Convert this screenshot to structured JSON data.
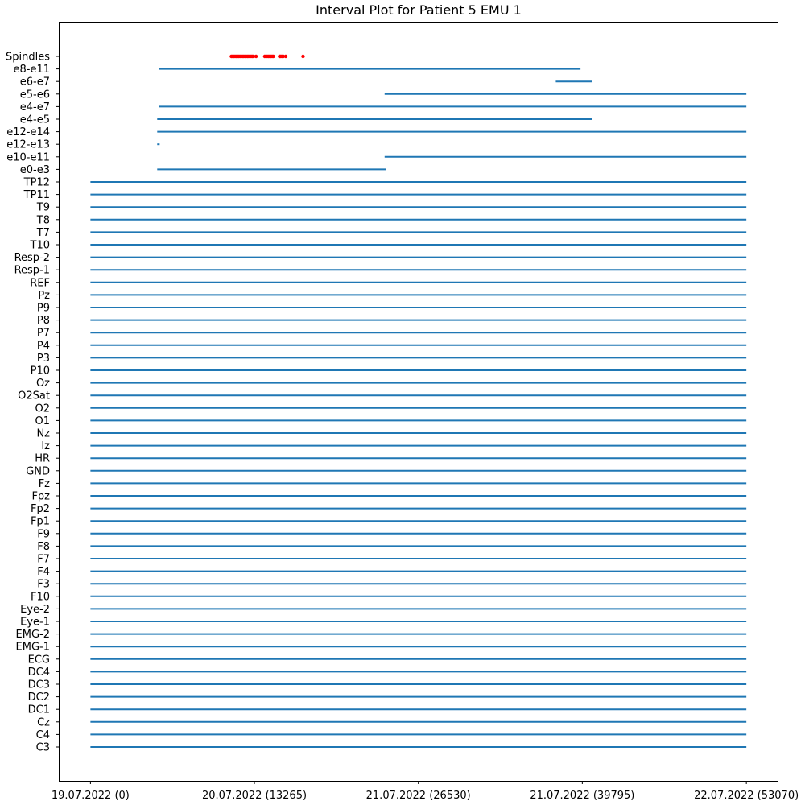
{
  "chart_data": {
    "type": "interval",
    "title": "Interval Plot for Patient 5 EMU 1",
    "xlabel": "",
    "ylabel": "",
    "xlim": [
      -2500,
      55600
    ],
    "grid": false,
    "legend": "none",
    "colors": {
      "interval": "#1f77b4",
      "spindle": "#ff0000"
    },
    "x_ticks": [
      {
        "value": 0,
        "label": "19.07.2022 (0)"
      },
      {
        "value": 13265,
        "label": "20.07.2022 (13265)"
      },
      {
        "value": 26530,
        "label": "21.07.2022 (26530)"
      },
      {
        "value": 39795,
        "label": "21.07.2022 (39795)"
      },
      {
        "value": 53070,
        "label": "22.07.2022 (53070)"
      }
    ],
    "rows": [
      {
        "label": "Spindles",
        "kind": "points",
        "points": [
          11400,
          11500,
          11600,
          11700,
          11800,
          11900,
          12000,
          12100,
          12200,
          12300,
          12400,
          12500,
          12600,
          12700,
          12800,
          12900,
          13000,
          13100,
          13200,
          13400,
          14100,
          14200,
          14300,
          14400,
          14500,
          14600,
          14700,
          14800,
          15300,
          15400,
          15500,
          15600,
          15800,
          17200
        ]
      },
      {
        "label": "e8-e11",
        "kind": "interval",
        "intervals": [
          [
            5550,
            39650
          ]
        ]
      },
      {
        "label": "e6-e7",
        "kind": "interval",
        "intervals": [
          [
            37650,
            40600
          ]
        ]
      },
      {
        "label": "e5-e6",
        "kind": "interval",
        "intervals": [
          [
            23800,
            53070
          ]
        ]
      },
      {
        "label": "e4-e7",
        "kind": "interval",
        "intervals": [
          [
            5550,
            53070
          ]
        ]
      },
      {
        "label": "e4-e5",
        "kind": "interval",
        "intervals": [
          [
            5400,
            40600
          ]
        ]
      },
      {
        "label": "e12-e14",
        "kind": "interval",
        "intervals": [
          [
            5400,
            53070
          ]
        ]
      },
      {
        "label": "e12-e13",
        "kind": "interval",
        "intervals": [
          [
            5400,
            5600
          ]
        ]
      },
      {
        "label": "e10-e11",
        "kind": "interval",
        "intervals": [
          [
            23800,
            53070
          ]
        ]
      },
      {
        "label": "e0-e3",
        "kind": "interval",
        "intervals": [
          [
            5400,
            23900
          ]
        ]
      },
      {
        "label": "TP12",
        "kind": "interval",
        "intervals": [
          [
            0,
            53070
          ]
        ]
      },
      {
        "label": "TP11",
        "kind": "interval",
        "intervals": [
          [
            0,
            53070
          ]
        ]
      },
      {
        "label": "T9",
        "kind": "interval",
        "intervals": [
          [
            0,
            53070
          ]
        ]
      },
      {
        "label": "T8",
        "kind": "interval",
        "intervals": [
          [
            0,
            53070
          ]
        ]
      },
      {
        "label": "T7",
        "kind": "interval",
        "intervals": [
          [
            0,
            53070
          ]
        ]
      },
      {
        "label": "T10",
        "kind": "interval",
        "intervals": [
          [
            0,
            53070
          ]
        ]
      },
      {
        "label": "Resp-2",
        "kind": "interval",
        "intervals": [
          [
            0,
            53070
          ]
        ]
      },
      {
        "label": "Resp-1",
        "kind": "interval",
        "intervals": [
          [
            0,
            53070
          ]
        ]
      },
      {
        "label": "REF",
        "kind": "interval",
        "intervals": [
          [
            0,
            53070
          ]
        ]
      },
      {
        "label": "Pz",
        "kind": "interval",
        "intervals": [
          [
            0,
            53070
          ]
        ]
      },
      {
        "label": "P9",
        "kind": "interval",
        "intervals": [
          [
            0,
            53070
          ]
        ]
      },
      {
        "label": "P8",
        "kind": "interval",
        "intervals": [
          [
            0,
            53070
          ]
        ]
      },
      {
        "label": "P7",
        "kind": "interval",
        "intervals": [
          [
            0,
            53070
          ]
        ]
      },
      {
        "label": "P4",
        "kind": "interval",
        "intervals": [
          [
            0,
            53070
          ]
        ]
      },
      {
        "label": "P3",
        "kind": "interval",
        "intervals": [
          [
            0,
            53070
          ]
        ]
      },
      {
        "label": "P10",
        "kind": "interval",
        "intervals": [
          [
            0,
            53070
          ]
        ]
      },
      {
        "label": "Oz",
        "kind": "interval",
        "intervals": [
          [
            0,
            53070
          ]
        ]
      },
      {
        "label": "O2Sat",
        "kind": "interval",
        "intervals": [
          [
            0,
            53070
          ]
        ]
      },
      {
        "label": "O2",
        "kind": "interval",
        "intervals": [
          [
            0,
            53070
          ]
        ]
      },
      {
        "label": "O1",
        "kind": "interval",
        "intervals": [
          [
            0,
            53070
          ]
        ]
      },
      {
        "label": "Nz",
        "kind": "interval",
        "intervals": [
          [
            0,
            53070
          ]
        ]
      },
      {
        "label": "Iz",
        "kind": "interval",
        "intervals": [
          [
            0,
            53070
          ]
        ]
      },
      {
        "label": "HR",
        "kind": "interval",
        "intervals": [
          [
            0,
            53070
          ]
        ]
      },
      {
        "label": "GND",
        "kind": "interval",
        "intervals": [
          [
            0,
            53070
          ]
        ]
      },
      {
        "label": "Fz",
        "kind": "interval",
        "intervals": [
          [
            0,
            53070
          ]
        ]
      },
      {
        "label": "Fpz",
        "kind": "interval",
        "intervals": [
          [
            0,
            53070
          ]
        ]
      },
      {
        "label": "Fp2",
        "kind": "interval",
        "intervals": [
          [
            0,
            53070
          ]
        ]
      },
      {
        "label": "Fp1",
        "kind": "interval",
        "intervals": [
          [
            0,
            53070
          ]
        ]
      },
      {
        "label": "F9",
        "kind": "interval",
        "intervals": [
          [
            0,
            53070
          ]
        ]
      },
      {
        "label": "F8",
        "kind": "interval",
        "intervals": [
          [
            0,
            53070
          ]
        ]
      },
      {
        "label": "F7",
        "kind": "interval",
        "intervals": [
          [
            0,
            53070
          ]
        ]
      },
      {
        "label": "F4",
        "kind": "interval",
        "intervals": [
          [
            0,
            53070
          ]
        ]
      },
      {
        "label": "F3",
        "kind": "interval",
        "intervals": [
          [
            0,
            53070
          ]
        ]
      },
      {
        "label": "F10",
        "kind": "interval",
        "intervals": [
          [
            0,
            53070
          ]
        ]
      },
      {
        "label": "Eye-2",
        "kind": "interval",
        "intervals": [
          [
            0,
            53070
          ]
        ]
      },
      {
        "label": "Eye-1",
        "kind": "interval",
        "intervals": [
          [
            0,
            53070
          ]
        ]
      },
      {
        "label": "EMG-2",
        "kind": "interval",
        "intervals": [
          [
            0,
            53070
          ]
        ]
      },
      {
        "label": "EMG-1",
        "kind": "interval",
        "intervals": [
          [
            0,
            53070
          ]
        ]
      },
      {
        "label": "ECG",
        "kind": "interval",
        "intervals": [
          [
            0,
            53070
          ]
        ]
      },
      {
        "label": "DC4",
        "kind": "interval",
        "intervals": [
          [
            0,
            53070
          ]
        ]
      },
      {
        "label": "DC3",
        "kind": "interval",
        "intervals": [
          [
            0,
            53070
          ]
        ]
      },
      {
        "label": "DC2",
        "kind": "interval",
        "intervals": [
          [
            0,
            53070
          ]
        ]
      },
      {
        "label": "DC1",
        "kind": "interval",
        "intervals": [
          [
            0,
            53070
          ]
        ]
      },
      {
        "label": "Cz",
        "kind": "interval",
        "intervals": [
          [
            0,
            53070
          ]
        ]
      },
      {
        "label": "C4",
        "kind": "interval",
        "intervals": [
          [
            0,
            53070
          ]
        ]
      },
      {
        "label": "C3",
        "kind": "interval",
        "intervals": [
          [
            0,
            53070
          ]
        ]
      }
    ]
  }
}
